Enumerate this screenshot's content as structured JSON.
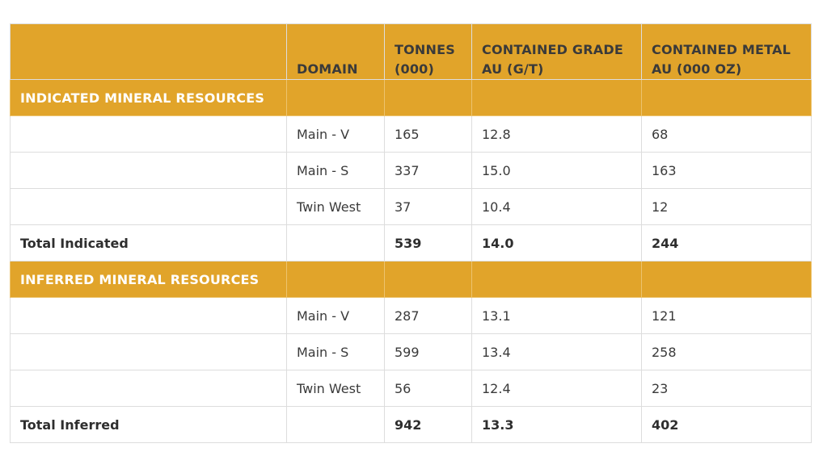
{
  "table": {
    "headers": {
      "label": "",
      "domain": "DOMAIN",
      "tonnes_line1": "TONNES",
      "tonnes_line2": "(000)",
      "grade_line1": "CONTAINED GRADE",
      "grade_line2": "AU (G/T)",
      "metal_line1": "CONTAINED METAL",
      "metal_line2": "AU (000 OZ)"
    },
    "sections": [
      {
        "title": "INDICATED MINERAL RESOURCES",
        "rows": [
          {
            "domain": "Main - V",
            "tonnes": "165",
            "grade": "12.8",
            "metal": "68"
          },
          {
            "domain": "Main - S",
            "tonnes": "337",
            "grade": "15.0",
            "metal": "163"
          },
          {
            "domain": "Twin West",
            "tonnes": "37",
            "grade": "10.4",
            "metal": "12"
          }
        ],
        "total": {
          "label": "Total Indicated",
          "tonnes": "539",
          "grade": "14.0",
          "metal": "244"
        }
      },
      {
        "title": "INFERRED MINERAL RESOURCES",
        "rows": [
          {
            "domain": "Main - V",
            "tonnes": "287",
            "grade": "13.1",
            "metal": "121"
          },
          {
            "domain": "Main - S",
            "tonnes": "599",
            "grade": "13.4",
            "metal": "258"
          },
          {
            "domain": "Twin West",
            "tonnes": "56",
            "grade": "12.4",
            "metal": "23"
          }
        ],
        "total": {
          "label": "Total Inferred",
          "tonnes": "942",
          "grade": "13.3",
          "metal": "402"
        }
      }
    ]
  }
}
